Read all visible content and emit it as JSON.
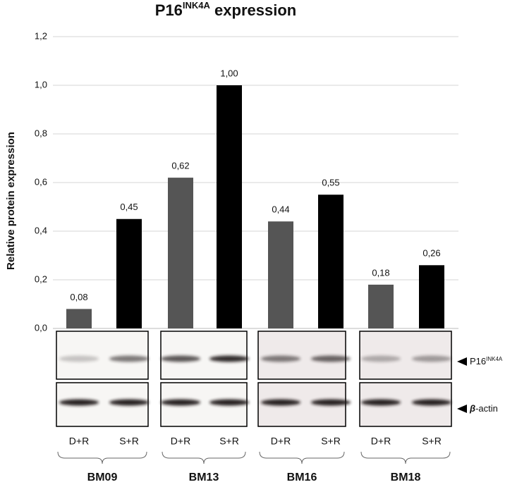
{
  "chart_data": {
    "type": "bar",
    "title": [
      "P16",
      "INK4A",
      " expression"
    ],
    "y_label": "Relative protein expression",
    "categories": [
      "BM09",
      "BM13",
      "BM16",
      "BM18"
    ],
    "series": [
      {
        "name": "D+R",
        "color": "#555555",
        "values": [
          0.08,
          0.62,
          0.44,
          0.18
        ],
        "value_labels": [
          "0,08",
          "0,62",
          "0,44",
          "0,18"
        ]
      },
      {
        "name": "S+R",
        "color": "#000000",
        "values": [
          0.45,
          1.0,
          0.55,
          0.26
        ],
        "value_labels": [
          "0,45",
          "1,00",
          "0,55",
          "0,26"
        ]
      }
    ],
    "ylim": [
      0,
      1.2
    ],
    "yticks": [
      {
        "value": 0,
        "label": "0,0"
      },
      {
        "value": 0.2,
        "label": "0,2"
      },
      {
        "value": 0.4,
        "label": "0,4"
      },
      {
        "value": 0.6,
        "label": "0,6"
      },
      {
        "value": 0.8,
        "label": "0,8"
      },
      {
        "value": 1.0,
        "label": "1,0"
      },
      {
        "value": 1.2,
        "label": "1,2"
      }
    ],
    "grid": true,
    "blot_labels": [
      [
        "P16",
        "INK4A"
      ],
      [
        "β",
        "-actin"
      ]
    ]
  }
}
